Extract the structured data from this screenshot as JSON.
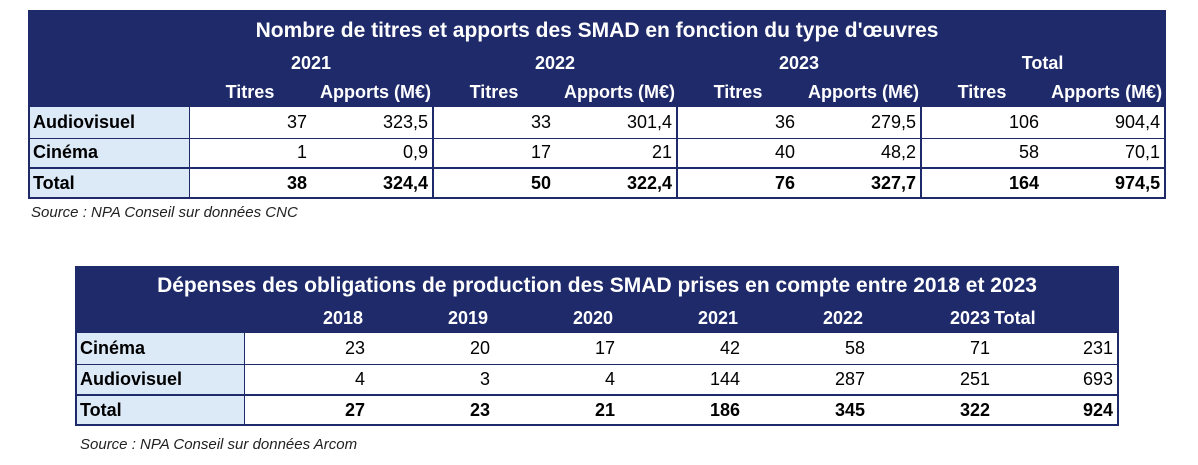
{
  "table1": {
    "title": "Nombre de titres et apports des SMAD en fonction du type d'œuvres",
    "years": [
      "2021",
      "2022",
      "2023",
      "Total"
    ],
    "sub": [
      "Titres",
      "Apports (M€)"
    ],
    "rows": [
      {
        "label": "Audiovisuel",
        "values": [
          "37",
          "323,5",
          "33",
          "301,4",
          "36",
          "279,5",
          "106",
          "904,4"
        ]
      },
      {
        "label": "Cinéma",
        "values": [
          "1",
          "0,9",
          "17",
          "21",
          "40",
          "48,2",
          "58",
          "70,1"
        ]
      },
      {
        "label": "Total",
        "values": [
          "38",
          "324,4",
          "50",
          "322,4",
          "76",
          "327,7",
          "164",
          "974,5"
        ]
      }
    ],
    "source": "Source : NPA Conseil sur données CNC"
  },
  "table2": {
    "title": "Dépenses des obligations de production des SMAD prises en compte  entre 2018 et 2023",
    "years": [
      "2018",
      "2019",
      "2020",
      "2021",
      "2022",
      "2023",
      "Total"
    ],
    "rows": [
      {
        "label": "Cinéma",
        "values": [
          "23",
          "20",
          "17",
          "42",
          "58",
          "71",
          "231"
        ]
      },
      {
        "label": "Audiovisuel",
        "values": [
          "4",
          "3",
          "4",
          "144",
          "287",
          "251",
          "693"
        ]
      },
      {
        "label": "Total",
        "values": [
          "27",
          "23",
          "21",
          "186",
          "345",
          "322",
          "924"
        ]
      }
    ],
    "source": "Source : NPA Conseil sur données Arcom"
  },
  "colors": {
    "header_bg": "#1f2a6b",
    "label_bg": "#dce9f7"
  }
}
